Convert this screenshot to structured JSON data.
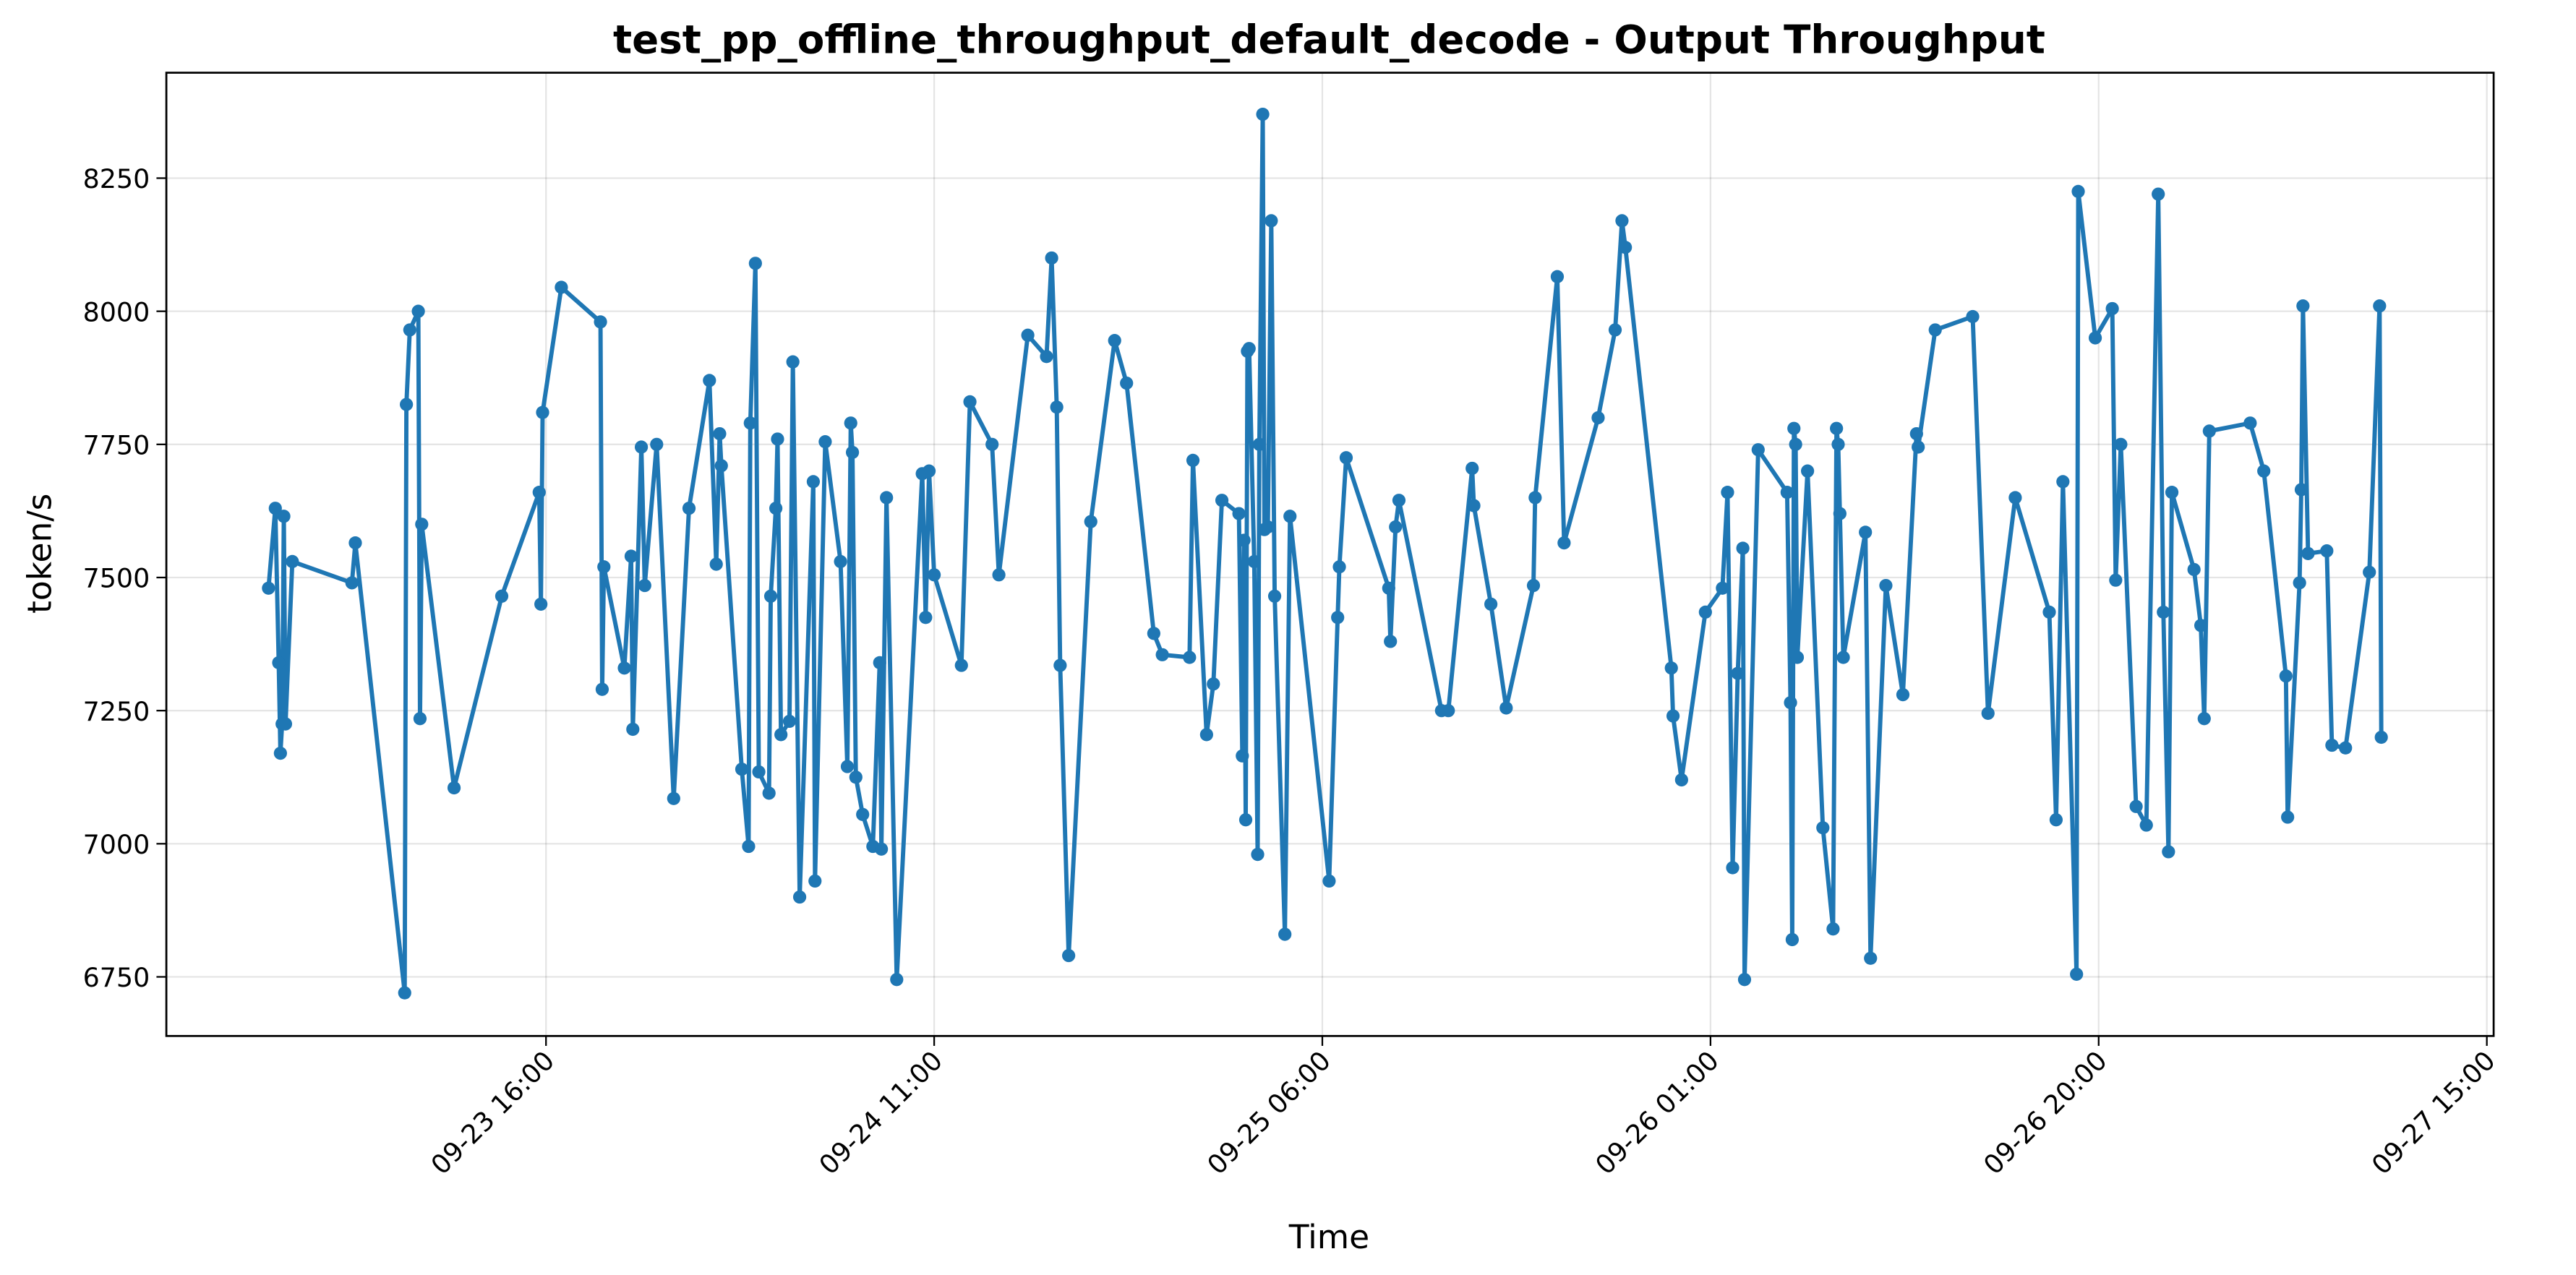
{
  "chart_data": {
    "type": "line",
    "title": "test_pp_offline_throughput_default_decode - Output Throughput",
    "x_label": "Time",
    "y_label": "token/s",
    "color": "#1f77b4",
    "grid": true,
    "xlim": [
      "09-22 21:25",
      "09-27 15:20"
    ],
    "xticks": [
      "09-23 16:00",
      "09-24 11:00",
      "09-25 06:00",
      "09-26 01:00",
      "09-26 20:00",
      "09-27 15:00"
    ],
    "ylim": [
      6639,
      8448
    ],
    "yticks": [
      6750,
      7000,
      7250,
      7500,
      7750,
      8000,
      8250
    ],
    "x": [
      "09-23 02:25",
      "09-23 02:45",
      "09-23 02:55",
      "09-23 03:00",
      "09-23 03:05",
      "09-23 03:10",
      "09-23 03:15",
      "09-23 03:35",
      "09-23 06:30",
      "09-23 06:40",
      "09-23 09:05",
      "09-23 09:10",
      "09-23 09:20",
      "09-23 09:45",
      "09-23 09:50",
      "09-23 09:55",
      "09-23 11:30",
      "09-23 13:50",
      "09-23 15:40",
      "09-23 15:45",
      "09-23 15:50",
      "09-23 16:45",
      "09-23 18:40",
      "09-23 18:45",
      "09-23 18:50",
      "09-23 19:50",
      "09-23 20:10",
      "09-23 20:15",
      "09-23 20:40",
      "09-23 20:50",
      "09-23 21:25",
      "09-23 22:15",
      "09-23 23:00",
      "09-24 00:00",
      "09-24 00:20",
      "09-24 00:30",
      "09-24 00:35",
      "09-24 01:35",
      "09-24 01:55",
      "09-24 02:00",
      "09-24 02:15",
      "09-24 02:25",
      "09-24 02:55",
      "09-24 03:00",
      "09-24 03:15",
      "09-24 03:20",
      "09-24 03:30",
      "09-24 03:55",
      "09-24 04:05",
      "09-24 04:25",
      "09-24 05:05",
      "09-24 05:10",
      "09-24 05:40",
      "09-24 06:25",
      "09-24 06:45",
      "09-24 06:55",
      "09-24 07:00",
      "09-24 07:10",
      "09-24 07:30",
      "09-24 08:00",
      "09-24 08:20",
      "09-24 08:25",
      "09-24 08:40",
      "09-24 09:10",
      "09-24 10:25",
      "09-24 10:35",
      "09-24 10:45",
      "09-24 11:00",
      "09-24 12:20",
      "09-24 12:45",
      "09-24 13:50",
      "09-24 14:10",
      "09-24 15:35",
      "09-24 16:30",
      "09-24 16:45",
      "09-24 17:00",
      "09-24 17:10",
      "09-24 17:35",
      "09-24 18:40",
      "09-24 19:50",
      "09-24 20:25",
      "09-24 21:45",
      "09-24 22:10",
      "09-24 23:30",
      "09-24 23:40",
      "09-25 00:20",
      "09-25 00:40",
      "09-25 01:05",
      "09-25 01:55",
      "09-25 02:05",
      "09-25 02:10",
      "09-25 02:15",
      "09-25 02:20",
      "09-25 02:25",
      "09-25 02:40",
      "09-25 02:50",
      "09-25 02:55",
      "09-25 03:05",
      "09-25 03:10",
      "09-25 03:20",
      "09-25 03:30",
      "09-25 03:40",
      "09-25 04:10",
      "09-25 04:25",
      "09-25 06:20",
      "09-25 06:45",
      "09-25 06:50",
      "09-25 07:10",
      "09-25 09:15",
      "09-25 09:20",
      "09-25 09:35",
      "09-25 09:45",
      "09-25 11:50",
      "09-25 12:10",
      "09-25 13:20",
      "09-25 13:25",
      "09-25 14:15",
      "09-25 15:00",
      "09-25 16:20",
      "09-25 16:25",
      "09-25 17:30",
      "09-25 17:50",
      "09-25 19:30",
      "09-25 20:20",
      "09-25 20:40",
      "09-25 20:50",
      "09-25 23:05",
      "09-25 23:10",
      "09-25 23:35",
      "09-26 00:45",
      "09-26 01:35",
      "09-26 01:50",
      "09-26 02:05",
      "09-26 02:20",
      "09-26 02:35",
      "09-26 02:40",
      "09-26 03:20",
      "09-26 04:45",
      "09-26 04:55",
      "09-26 05:00",
      "09-26 05:05",
      "09-26 05:10",
      "09-26 05:15",
      "09-26 05:45",
      "09-26 06:30",
      "09-26 07:00",
      "09-26 07:10",
      "09-26 07:15",
      "09-26 07:20",
      "09-26 07:30",
      "09-26 08:35",
      "09-26 08:50",
      "09-26 09:35",
      "09-26 10:25",
      "09-26 11:05",
      "09-26 11:10",
      "09-26 12:00",
      "09-26 13:50",
      "09-26 14:35",
      "09-26 15:55",
      "09-26 17:35",
      "09-26 17:55",
      "09-26 18:15",
      "09-26 18:55",
      "09-26 19:00",
      "09-26 19:50",
      "09-26 20:40",
      "09-26 20:50",
      "09-26 21:05",
      "09-26 21:50",
      "09-26 22:20",
      "09-26 22:55",
      "09-26 23:10",
      "09-26 23:25",
      "09-26 23:35",
      "09-27 00:40",
      "09-27 01:00",
      "09-27 01:10",
      "09-27 01:25",
      "09-27 03:25",
      "09-27 04:05",
      "09-27 05:10",
      "09-27 05:15",
      "09-27 05:50",
      "09-27 05:55",
      "09-27 06:00",
      "09-27 06:15",
      "09-27 07:10",
      "09-27 07:25",
      "09-27 08:05",
      "09-27 09:15",
      "09-27 09:45",
      "09-27 09:50"
    ],
    "values": [
      7480,
      7630,
      7340,
      7170,
      7225,
      7615,
      7225,
      7530,
      7490,
      7565,
      6720,
      7825,
      7965,
      8000,
      7235,
      7600,
      7105,
      7465,
      7660,
      7450,
      7810,
      8045,
      7980,
      7290,
      7520,
      7330,
      7540,
      7215,
      7745,
      7485,
      7750,
      7085,
      7630,
      7870,
      7525,
      7770,
      7710,
      7140,
      6995,
      7790,
      8090,
      7135,
      7095,
      7465,
      7630,
      7760,
      7205,
      7230,
      7905,
      6900,
      7680,
      6930,
      7755,
      7530,
      7145,
      7790,
      7735,
      7125,
      7055,
      6995,
      7340,
      6990,
      7650,
      6745,
      7695,
      7425,
      7700,
      7505,
      7335,
      7830,
      7750,
      7505,
      7955,
      7915,
      8100,
      7820,
      7335,
      6790,
      7605,
      7945,
      7865,
      7395,
      7355,
      7350,
      7720,
      7205,
      7300,
      7645,
      7620,
      7165,
      7570,
      7045,
      7925,
      7930,
      7530,
      6980,
      7750,
      8370,
      7590,
      7595,
      8170,
      7465,
      6830,
      7615,
      6930,
      7425,
      7520,
      7725,
      7480,
      7380,
      7595,
      7645,
      7250,
      7250,
      7705,
      7635,
      7450,
      7255,
      7485,
      7650,
      8065,
      7565,
      7800,
      7965,
      8170,
      8120,
      7330,
      7240,
      7120,
      7435,
      7480,
      7660,
      6955,
      7320,
      7555,
      6745,
      7740,
      7660,
      7265,
      6820,
      7780,
      7750,
      7350,
      7700,
      7030,
      6840,
      7780,
      7750,
      7620,
      7350,
      7585,
      6785,
      7485,
      7280,
      7770,
      7745,
      7965,
      7990,
      7245,
      7650,
      7435,
      7045,
      7680,
      6755,
      8225,
      7950,
      8005,
      7495,
      7750,
      7070,
      7035,
      8220,
      7435,
      6985,
      7660,
      7515,
      7410,
      7235,
      7775,
      7790,
      7700,
      7315,
      7050,
      7490,
      7665,
      8010,
      7545,
      7550,
      7185,
      7180,
      7510,
      8010,
      7200
    ]
  }
}
